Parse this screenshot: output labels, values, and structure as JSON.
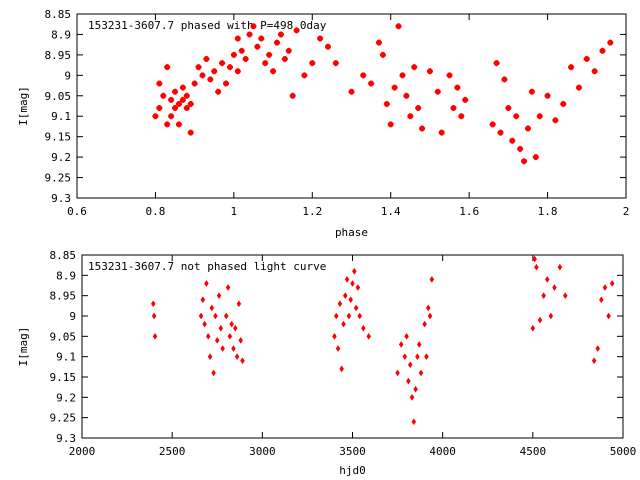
{
  "chart_data": [
    {
      "type": "scatter",
      "title": "153231-3607.7 phased with P=498.0day",
      "xlabel": "phase",
      "ylabel": "I[mag]",
      "xlim": [
        0.6,
        2.0
      ],
      "ylim": [
        8.85,
        9.3
      ],
      "y_inverted": true,
      "grid": false,
      "legend": "none",
      "color": "#ff0000",
      "xticks": [
        "0.6",
        "0.8",
        "1",
        "1.2",
        "1.4",
        "1.6",
        "1.8",
        "2"
      ],
      "xtick_values": [
        0.6,
        0.8,
        1.0,
        1.2,
        1.4,
        1.6,
        1.8,
        2.0
      ],
      "yticks": [
        "8.85",
        "8.9",
        "8.95",
        "9",
        "9.05",
        "9.1",
        "9.15",
        "9.2",
        "9.25",
        "9.3"
      ],
      "ytick_values": [
        8.85,
        8.9,
        8.95,
        9.0,
        9.05,
        9.1,
        9.15,
        9.2,
        9.25,
        9.3
      ],
      "series": [
        {
          "x": [
            0.8,
            0.81,
            0.81,
            0.82,
            0.83,
            0.83,
            0.84,
            0.84,
            0.85,
            0.85,
            0.86,
            0.86,
            0.87,
            0.87,
            0.88,
            0.88,
            0.89,
            0.89,
            0.9,
            0.91,
            0.92,
            0.93,
            0.94,
            0.95,
            0.96,
            0.97,
            0.98,
            0.99,
            1.0,
            1.01,
            1.01,
            1.02,
            1.03,
            1.04,
            1.05,
            1.06,
            1.07,
            1.08,
            1.09,
            1.1,
            1.11,
            1.12,
            1.13,
            1.14,
            1.15,
            1.16,
            1.18,
            1.2,
            1.22,
            1.24,
            1.26,
            1.3,
            1.33,
            1.35,
            1.37,
            1.38,
            1.39,
            1.4,
            1.41,
            1.42,
            1.43,
            1.44,
            1.45,
            1.46,
            1.47,
            1.48,
            1.5,
            1.52,
            1.53,
            1.55,
            1.56,
            1.57,
            1.58,
            1.59,
            1.66,
            1.67,
            1.68,
            1.69,
            1.7,
            1.71,
            1.72,
            1.73,
            1.74,
            1.75,
            1.76,
            1.77,
            1.78,
            1.8,
            1.82,
            1.84,
            1.86,
            1.88,
            1.9,
            1.92,
            1.94,
            1.96
          ],
          "y": [
            9.1,
            9.08,
            9.02,
            9.05,
            8.98,
            9.12,
            9.06,
            9.1,
            9.04,
            9.08,
            9.07,
            9.12,
            9.06,
            9.03,
            9.08,
            9.05,
            9.14,
            9.07,
            9.02,
            8.98,
            9.0,
            8.96,
            9.01,
            8.99,
            9.04,
            8.97,
            9.02,
            8.98,
            8.95,
            8.91,
            8.99,
            8.94,
            8.96,
            8.9,
            8.88,
            8.93,
            8.91,
            8.97,
            8.95,
            8.99,
            8.92,
            8.9,
            8.96,
            8.94,
            9.05,
            8.89,
            9.0,
            8.97,
            8.91,
            8.93,
            8.97,
            9.04,
            9.0,
            9.02,
            8.92,
            8.95,
            9.07,
            9.12,
            9.03,
            8.88,
            9.0,
            9.05,
            9.1,
            8.98,
            9.08,
            9.13,
            8.99,
            9.04,
            9.14,
            9.0,
            9.08,
            9.03,
            9.1,
            9.06,
            9.12,
            8.97,
            9.14,
            9.01,
            9.08,
            9.16,
            9.1,
            9.18,
            9.21,
            9.13,
            9.04,
            9.2,
            9.1,
            9.05,
            9.11,
            9.07,
            8.98,
            9.03,
            8.96,
            8.99,
            8.94,
            8.92
          ],
          "marker": "plus"
        }
      ]
    },
    {
      "type": "scatter",
      "title": "153231-3607.7 not phased light curve",
      "xlabel": "hjd0",
      "ylabel": "I[mag]",
      "xlim": [
        2000,
        5000
      ],
      "ylim": [
        8.85,
        9.3
      ],
      "y_inverted": true,
      "grid": false,
      "legend": "none",
      "color": "#ff0000",
      "xticks": [
        "2000",
        "2500",
        "3000",
        "3500",
        "4000",
        "4500",
        "5000"
      ],
      "xtick_values": [
        2000,
        2500,
        3000,
        3500,
        4000,
        4500,
        5000
      ],
      "yticks": [
        "8.85",
        "8.9",
        "8.95",
        "9",
        "9.05",
        "9.1",
        "9.15",
        "9.2",
        "9.25",
        "9.3"
      ],
      "ytick_values": [
        8.85,
        8.9,
        8.95,
        9.0,
        9.05,
        9.1,
        9.15,
        9.2,
        9.25,
        9.3
      ],
      "series": [
        {
          "x": [
            2395,
            2400,
            2405,
            2660,
            2670,
            2680,
            2690,
            2700,
            2710,
            2720,
            2730,
            2740,
            2750,
            2760,
            2770,
            2780,
            2800,
            2810,
            2820,
            2830,
            2840,
            2850,
            2860,
            2870,
            2880,
            2890,
            3400,
            3410,
            3420,
            3430,
            3440,
            3450,
            3460,
            3470,
            3480,
            3490,
            3500,
            3510,
            3520,
            3530,
            3540,
            3560,
            3590,
            3750,
            3770,
            3790,
            3800,
            3810,
            3820,
            3830,
            3840,
            3850,
            3860,
            3870,
            3880,
            3900,
            3910,
            3920,
            3930,
            3940,
            4500,
            4510,
            4520,
            4540,
            4560,
            4580,
            4600,
            4620,
            4650,
            4680,
            4840,
            4860,
            4880,
            4900,
            4920,
            4940
          ],
          "y": [
            8.97,
            9.0,
            9.05,
            9.0,
            8.96,
            9.02,
            8.92,
            9.05,
            9.1,
            8.98,
            9.14,
            9.0,
            9.06,
            8.95,
            9.03,
            9.08,
            9.0,
            8.93,
            9.05,
            9.02,
            9.08,
            9.03,
            9.1,
            8.97,
            9.06,
            9.11,
            9.05,
            9.0,
            9.08,
            8.97,
            9.13,
            9.02,
            8.95,
            8.91,
            9.0,
            8.96,
            8.92,
            8.89,
            8.98,
            8.93,
            9.0,
            9.03,
            9.05,
            9.14,
            9.07,
            9.1,
            9.05,
            9.16,
            9.12,
            9.2,
            9.26,
            9.18,
            9.1,
            9.07,
            9.14,
            9.02,
            9.1,
            8.98,
            9.0,
            8.91,
            9.03,
            8.86,
            8.88,
            9.01,
            8.95,
            8.91,
            9.0,
            8.93,
            8.88,
            8.95,
            9.11,
            9.08,
            8.96,
            8.93,
            9.0,
            8.92
          ],
          "marker": "diamond"
        }
      ]
    }
  ]
}
